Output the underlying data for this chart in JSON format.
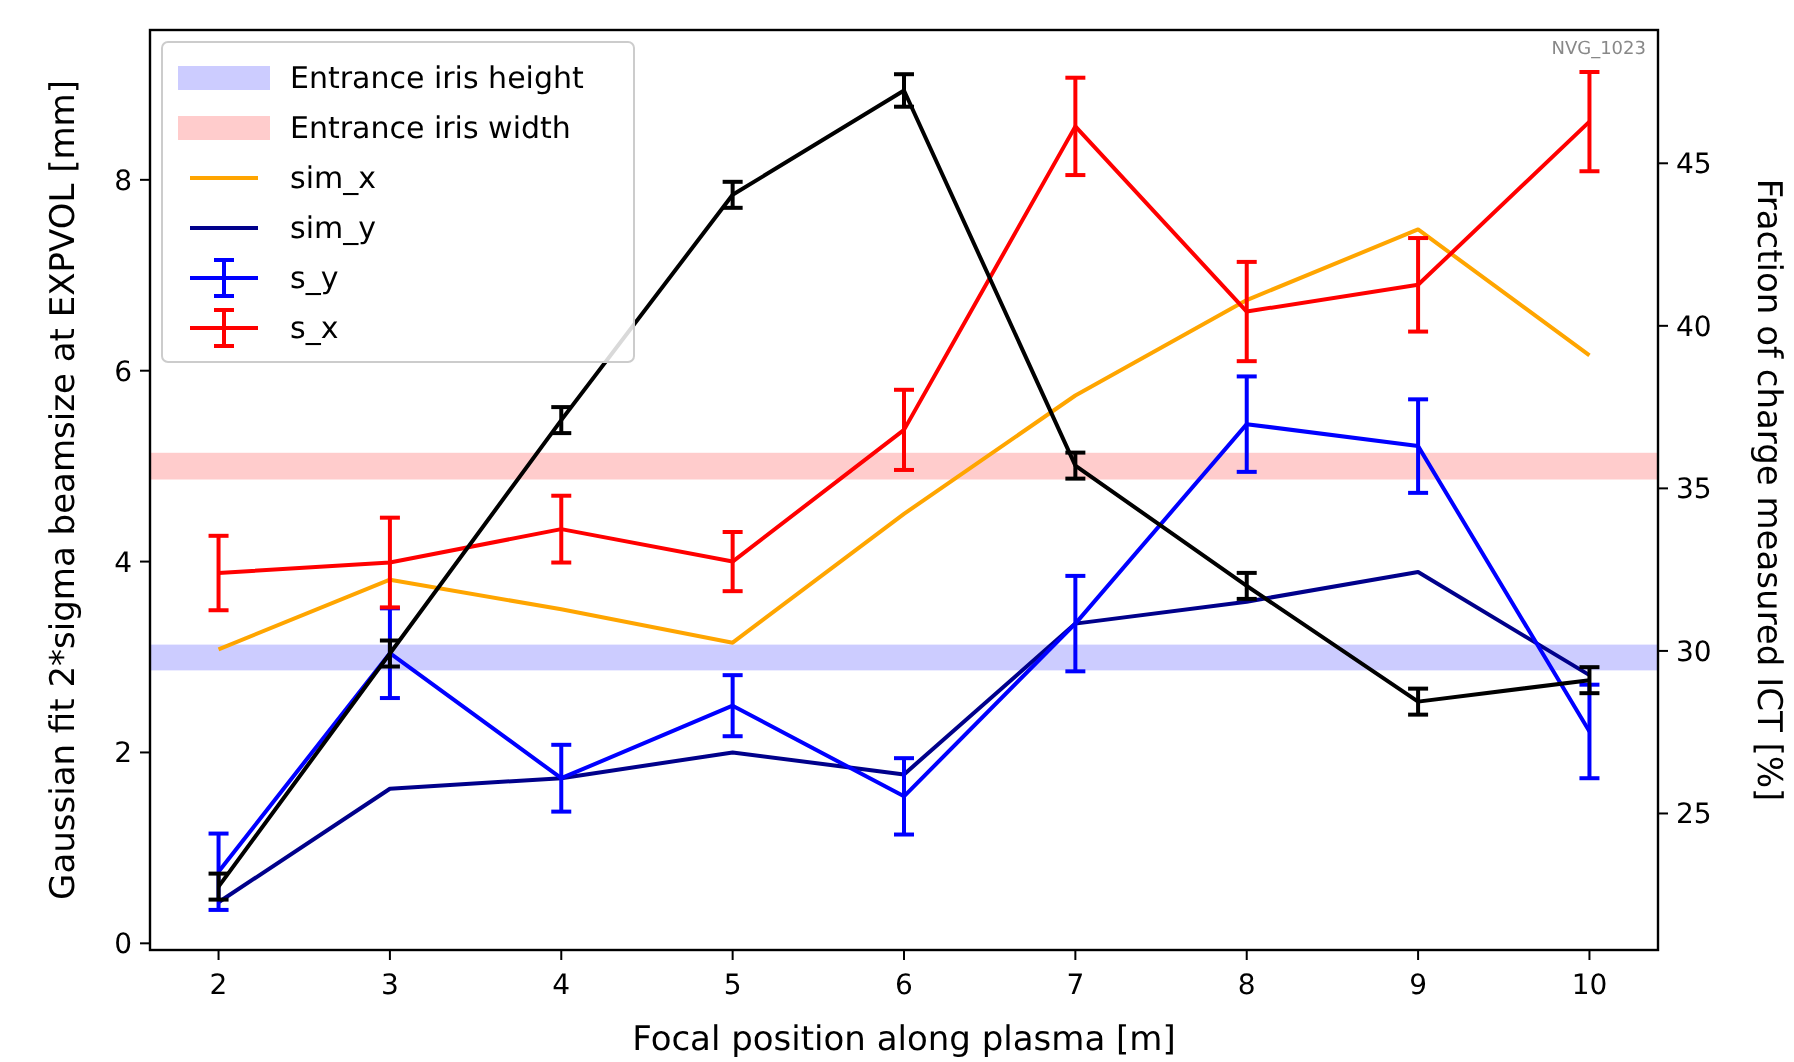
{
  "chart_data": {
    "type": "line",
    "xlabel": "Focal position along plasma [m]",
    "ylabel": "Gaussian fit 2*sigma beamsize at EXPVOL [mm]",
    "y2label": "Fraction of charge measured ICT [%]",
    "x": [
      2,
      3,
      4,
      5,
      6,
      7,
      8,
      9,
      10
    ],
    "xlim": [
      1.6,
      10.4
    ],
    "xticks": [
      2,
      3,
      4,
      5,
      6,
      7,
      8,
      9,
      10
    ],
    "ylim": [
      -0.07,
      9.57
    ],
    "yticks": [
      0,
      2,
      4,
      6,
      8
    ],
    "y2lim": [
      20.8,
      49.1
    ],
    "y2ticks": [
      25,
      30,
      35,
      40,
      45
    ],
    "legend": "top left",
    "grid": false,
    "marker": "none",
    "line_style": "solid",
    "bands": [
      {
        "axis": "y",
        "from": 2.86,
        "to": 3.13,
        "label": "Entrance iris height",
        "color": "#ccccff"
      },
      {
        "axis": "y",
        "from": 4.86,
        "to": 5.14,
        "label": "Entrance iris width",
        "color": "#ffcccc"
      }
    ],
    "annotations": [
      "NVG_1023"
    ],
    "series": [
      {
        "name": "sim_x",
        "color": "#ffa500",
        "values": [
          3.08,
          3.81,
          3.5,
          3.15,
          4.5,
          5.74,
          6.74,
          7.48,
          6.16
        ]
      },
      {
        "name": "sim_y",
        "color": "#00008b",
        "values": [
          0.43,
          1.62,
          1.73,
          2.0,
          1.77,
          3.35,
          3.58,
          3.89,
          2.81
        ]
      },
      {
        "name": "s_y",
        "color": "#0000ff",
        "values": [
          0.75,
          3.04,
          1.73,
          2.49,
          1.54,
          3.35,
          5.44,
          5.21,
          2.22
        ],
        "errors": [
          0.4,
          0.47,
          0.35,
          0.32,
          0.4,
          0.5,
          0.5,
          0.49,
          0.49
        ]
      },
      {
        "name": "s_x",
        "color": "#ff0000",
        "values": [
          3.88,
          3.99,
          4.34,
          4.0,
          5.38,
          8.56,
          6.62,
          6.9,
          8.61
        ],
        "errors": [
          0.39,
          0.47,
          0.35,
          0.31,
          0.42,
          0.51,
          0.52,
          0.49,
          0.52
        ]
      },
      {
        "color": "#000000",
        "axis": "y2",
        "values": [
          22.75,
          29.92,
          37.1,
          44.03,
          47.24,
          35.7,
          32.0,
          28.44,
          29.1
        ],
        "errors": [
          0.4,
          0.4,
          0.4,
          0.4,
          0.5,
          0.4,
          0.4,
          0.4,
          0.4
        ]
      }
    ]
  }
}
